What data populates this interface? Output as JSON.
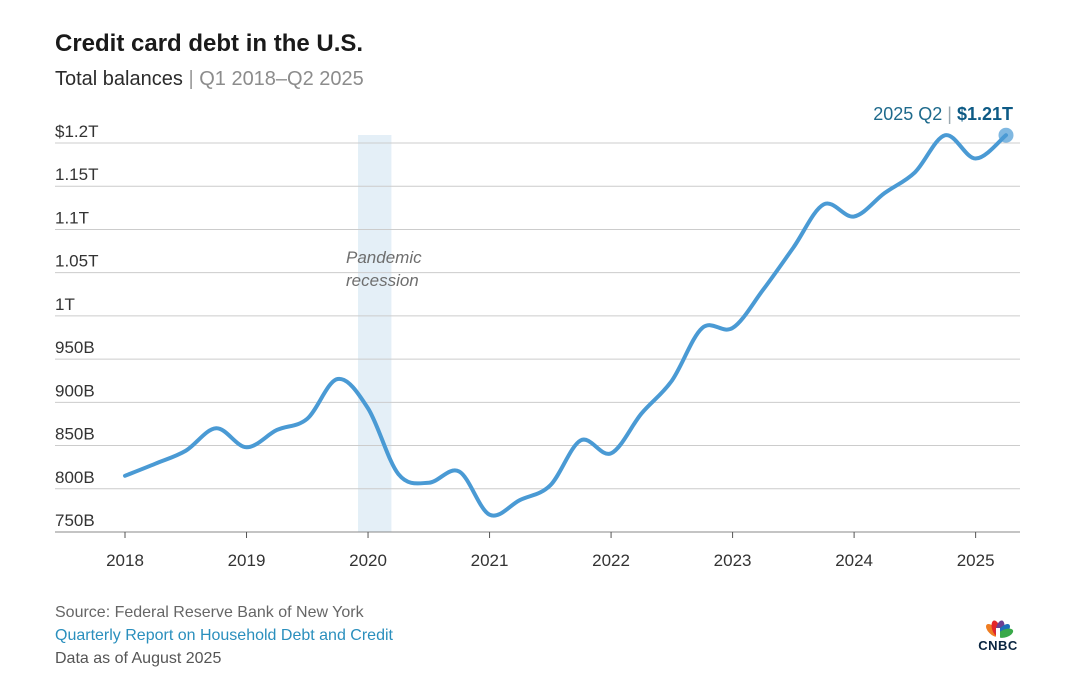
{
  "title": "Credit card debt in the U.S.",
  "subtitle": {
    "main": "Total balances",
    "separator": "|",
    "range": "Q1 2018–Q2 2025"
  },
  "footer": {
    "source": "Source: Federal Reserve Bank of New York",
    "report_link": "Quarterly Report on Household Debt and Credit",
    "as_of": "Data as of August 2025"
  },
  "logo": {
    "text": "CNBC",
    "icon": "nbc-peacock-icon"
  },
  "colors": {
    "line": "#4a9ad4",
    "recession_band": "#e4eff7",
    "grid": "#cccccc",
    "callout_label": "#1e6a8c",
    "callout_value": "#0d5a85",
    "link": "#2a8fbd"
  },
  "chart_data": {
    "type": "line",
    "x_unit": "quarter",
    "y_unit": "billions USD",
    "ylim": [
      750,
      1210
    ],
    "grid": true,
    "y_ticks": [
      {
        "value": 750,
        "label": "750B"
      },
      {
        "value": 800,
        "label": "800B"
      },
      {
        "value": 850,
        "label": "850B"
      },
      {
        "value": 900,
        "label": "900B"
      },
      {
        "value": 950,
        "label": "950B"
      },
      {
        "value": 1000,
        "label": "1T"
      },
      {
        "value": 1050,
        "label": "1.05T"
      },
      {
        "value": 1100,
        "label": "1.1T"
      },
      {
        "value": 1150,
        "label": "1.15T"
      },
      {
        "value": 1200,
        "label": "$1.2T"
      }
    ],
    "x_ticks": [
      {
        "value": "2018 Q1",
        "label": "2018"
      },
      {
        "value": "2019 Q1",
        "label": "2019"
      },
      {
        "value": "2020 Q1",
        "label": "2020"
      },
      {
        "value": "2021 Q1",
        "label": "2021"
      },
      {
        "value": "2022 Q1",
        "label": "2022"
      },
      {
        "value": "2023 Q1",
        "label": "2023"
      },
      {
        "value": "2024 Q1",
        "label": "2024"
      },
      {
        "value": "2025 Q1",
        "label": "2025"
      }
    ],
    "series": [
      {
        "x": [
          "2018 Q1",
          "2018 Q2",
          "2018 Q3",
          "2018 Q4",
          "2019 Q1",
          "2019 Q2",
          "2019 Q3",
          "2019 Q4",
          "2020 Q1",
          "2020 Q2",
          "2020 Q3",
          "2020 Q4",
          "2021 Q1",
          "2021 Q2",
          "2021 Q3",
          "2021 Q4",
          "2022 Q1",
          "2022 Q2",
          "2022 Q3",
          "2022 Q4",
          "2023 Q1",
          "2023 Q2",
          "2023 Q3",
          "2023 Q4",
          "2024 Q1",
          "2024 Q2",
          "2024 Q3",
          "2024 Q4",
          "2025 Q1",
          "2025 Q2"
        ],
        "values": [
          815,
          829,
          844,
          870,
          848,
          868,
          881,
          927,
          893,
          817,
          807,
          820,
          770,
          787,
          804,
          856,
          841,
          887,
          925,
          986,
          986,
          1030,
          1079,
          1129,
          1115,
          1142,
          1166,
          1209,
          1182,
          1209
        ]
      }
    ],
    "shaded_region": {
      "from": "2020 Q1",
      "to": "2020 Q2",
      "label_line1": "Pandemic",
      "label_line2": "recession"
    },
    "callout": {
      "period": "2025 Q2",
      "separator": "|",
      "value": "$1.21T"
    }
  }
}
